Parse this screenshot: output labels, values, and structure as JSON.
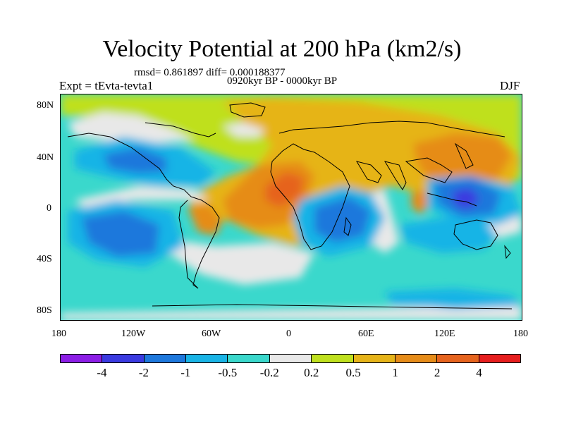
{
  "title": "Velocity Potential at 200 hPa (km2/s)",
  "stats_line": "rmsd= 0.861897 diff= 0.000188377",
  "period_line": "0920kyr BP - 0000kyr BP",
  "left_label": "Expt = tEvta-tevta1",
  "right_label": "DJF",
  "y_ticks": [
    "80N",
    "40N",
    "0",
    "40S",
    "80S"
  ],
  "x_ticks": [
    "180",
    "120W",
    "60W",
    "0",
    "60E",
    "120E",
    "180"
  ],
  "colorbar": {
    "colors": [
      "#8c1ee6",
      "#3a3ae0",
      "#1e78dc",
      "#19b4e6",
      "#3ad8cc",
      "#e8e8e8",
      "#bfe01e",
      "#e6b419",
      "#e68c19",
      "#e6641e",
      "#e61e1e"
    ],
    "labels": [
      "-4",
      "-2",
      "-1",
      "-0.5",
      "-0.2",
      "0.2",
      "0.5",
      "1",
      "2",
      "4"
    ]
  },
  "map_colors": {
    "ocean_default": "#3ad8cc",
    "grey": "#e8e8e8",
    "yellow": "#bfe01e",
    "orange": "#e6b419",
    "dark_orange": "#e68c19",
    "red_orange": "#e6641e",
    "light_blue": "#19b4e6",
    "blue": "#1e78dc",
    "dark_blue": "#3a3ae0"
  }
}
